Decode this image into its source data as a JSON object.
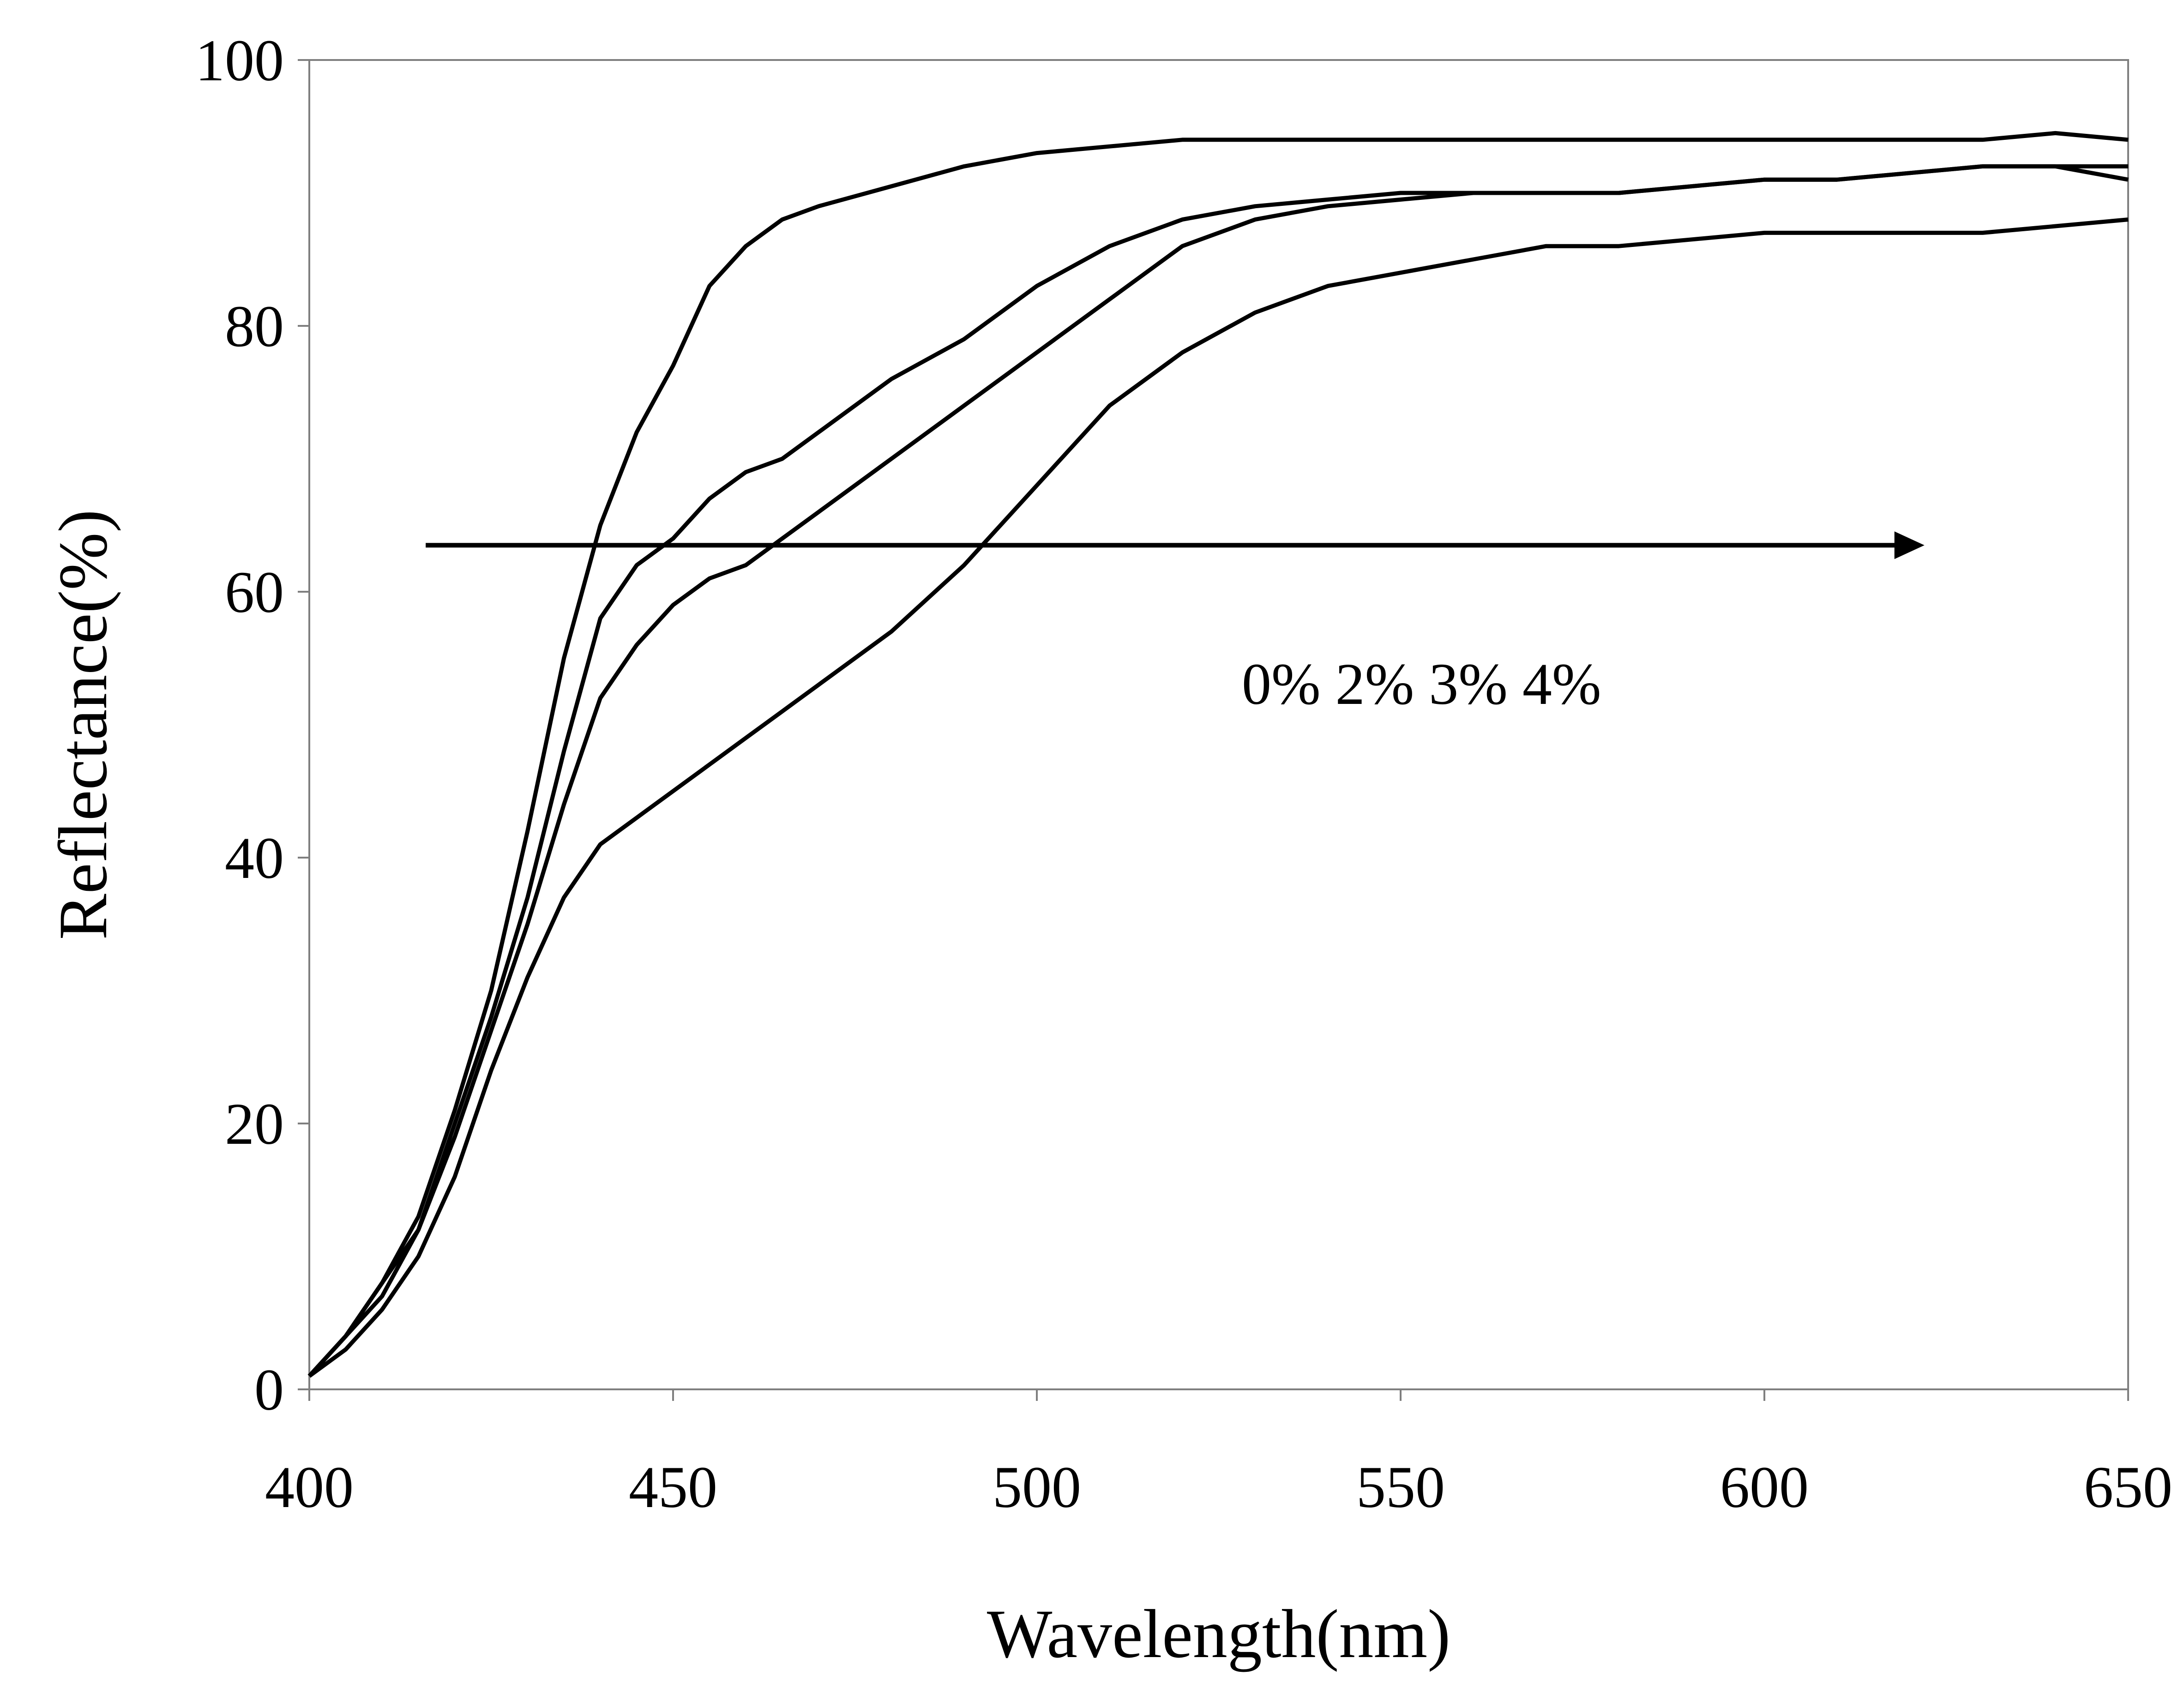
{
  "chart_data": {
    "type": "line",
    "title": "",
    "xlabel": "Wavelength(nm)",
    "ylabel": "Reflectance(%)",
    "xlim": [
      400,
      650
    ],
    "ylim": [
      0,
      100
    ],
    "xticks": [
      "400",
      "450",
      "500",
      "550",
      "600",
      "650"
    ],
    "yticks": [
      "0",
      "20",
      "40",
      "60",
      "80",
      "100"
    ],
    "grid": false,
    "legend": "none",
    "annotation": "0% 2% 3% 4%",
    "arrow": {
      "from": [
        416,
        63.5
      ],
      "to": [
        622,
        63.5
      ]
    },
    "line_color": "#000000",
    "x": [
      400,
      405,
      410,
      415,
      420,
      425,
      430,
      435,
      440,
      445,
      450,
      455,
      460,
      465,
      470,
      480,
      490,
      500,
      510,
      520,
      530,
      540,
      550,
      560,
      570,
      580,
      590,
      600,
      610,
      620,
      630,
      640,
      650
    ],
    "series": [
      {
        "values": [
          1,
          4,
          8,
          13,
          21,
          30,
          42,
          55,
          65,
          72,
          77,
          83,
          86,
          88,
          89,
          90.5,
          92,
          93,
          93.5,
          94,
          94,
          94,
          94,
          94,
          94,
          94,
          94,
          94,
          94,
          94,
          94,
          94.5,
          94
        ]
      },
      {
        "values": [
          1,
          4,
          8,
          12,
          20,
          28,
          37,
          48,
          58,
          62,
          64,
          67,
          69,
          70,
          72,
          76,
          79,
          83,
          86,
          88,
          89,
          89.5,
          90,
          90,
          90,
          90,
          90.5,
          91,
          91,
          91.5,
          92,
          92,
          92
        ]
      },
      {
        "values": [
          1,
          4,
          7,
          12,
          19,
          27,
          35,
          44,
          52,
          56,
          59,
          61,
          62,
          64,
          66,
          70,
          74,
          78,
          82,
          86,
          88,
          89,
          89.5,
          90,
          90,
          90,
          90.5,
          91,
          91,
          91.5,
          92,
          92,
          91
        ]
      },
      {
        "values": [
          1,
          3,
          6,
          10,
          16,
          24,
          31,
          37,
          41,
          43,
          45,
          47,
          49,
          51,
          53,
          57,
          62,
          68,
          74,
          78,
          81,
          83,
          84,
          85,
          86,
          86,
          86.5,
          87,
          87,
          87,
          87,
          87.5,
          88
        ]
      }
    ]
  }
}
